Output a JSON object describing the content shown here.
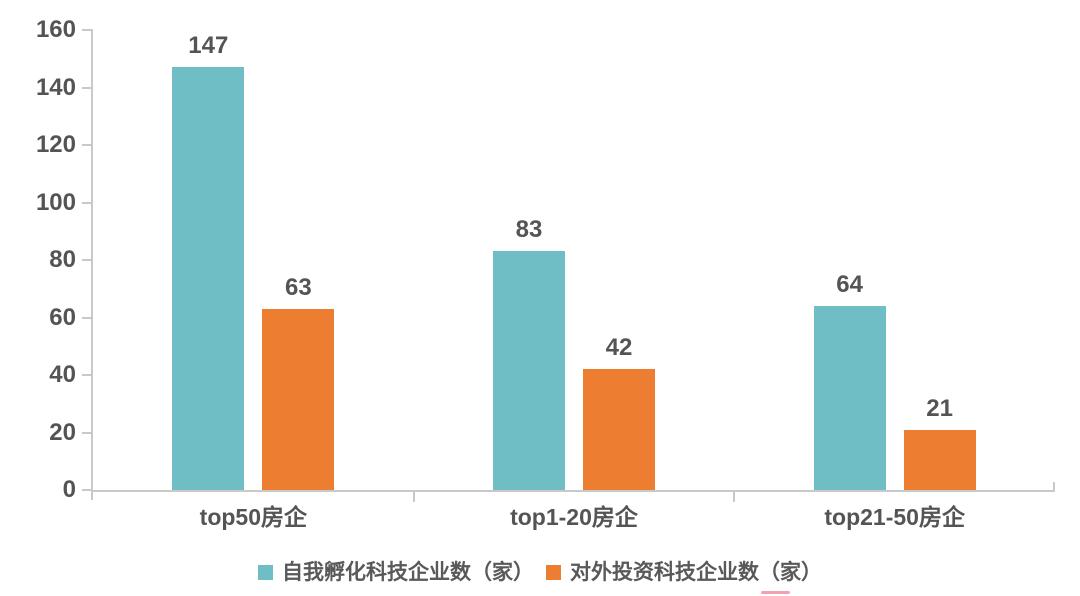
{
  "chart_data": {
    "type": "bar",
    "categories": [
      "top50房企",
      "top1-20房企",
      "top21-50房企"
    ],
    "series": [
      {
        "name": "自我孵化科技企业数（家）",
        "color": "#6FBEC5",
        "values": [
          147,
          83,
          64
        ]
      },
      {
        "name": "对外投资科技企业数（家）",
        "color": "#ED7D31",
        "values": [
          63,
          42,
          21
        ]
      }
    ],
    "title": "",
    "xlabel": "",
    "ylabel": "",
    "ylim": [
      0,
      160
    ],
    "yticks": [
      0,
      20,
      40,
      60,
      80,
      100,
      120,
      140,
      160
    ],
    "grid": false,
    "legend_position": "bottom",
    "colors": {
      "axis": "#C9C9C9",
      "tick_label": "#545454",
      "value_label": "#545454",
      "category_label": "#545454",
      "legend_text": "#595959",
      "background": "#FFFFFF",
      "pink_mark": "#EA8C99"
    }
  }
}
